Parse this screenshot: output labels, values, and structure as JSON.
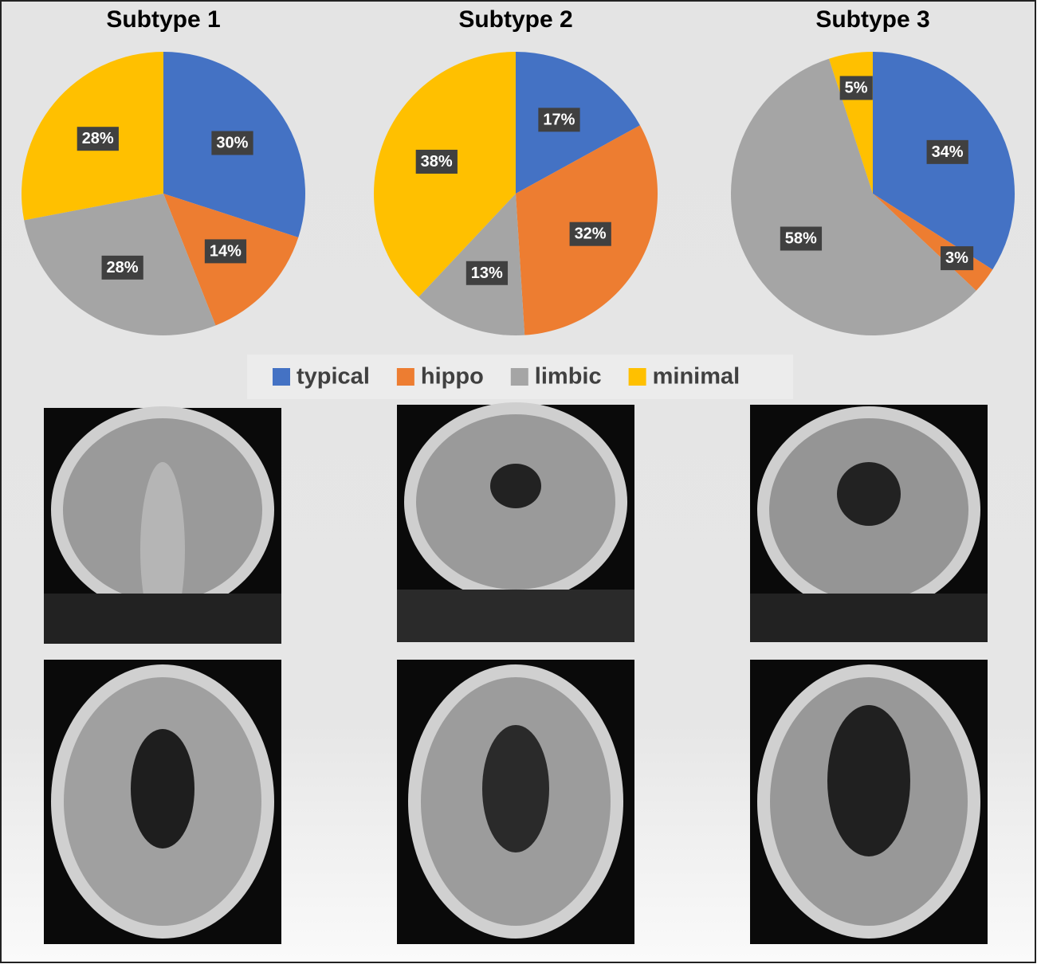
{
  "chart_data": [
    {
      "type": "pie",
      "title": "Subtype 1",
      "categories": [
        "typical",
        "hippo",
        "limbic",
        "minimal"
      ],
      "values": [
        30,
        14,
        28,
        28
      ],
      "value_labels": [
        "30%",
        "14%",
        "28%",
        "28%"
      ],
      "colors": [
        "#4472c4",
        "#ed7d31",
        "#a5a5a5",
        "#ffc000"
      ],
      "legend": "bottom"
    },
    {
      "type": "pie",
      "title": "Subtype 2",
      "categories": [
        "typical",
        "hippo",
        "limbic",
        "minimal"
      ],
      "values": [
        17,
        32,
        13,
        38
      ],
      "value_labels": [
        "17%",
        "32%",
        "13%",
        "38%"
      ],
      "colors": [
        "#4472c4",
        "#ed7d31",
        "#a5a5a5",
        "#ffc000"
      ]
    },
    {
      "type": "pie",
      "title": "Subtype 3",
      "categories": [
        "typical",
        "hippo",
        "limbic",
        "minimal"
      ],
      "values": [
        34,
        3,
        58,
        5
      ],
      "value_labels": [
        "34%",
        "3%",
        "58%",
        "5%"
      ],
      "colors": [
        "#4472c4",
        "#ed7d31",
        "#a5a5a5",
        "#ffc000"
      ]
    }
  ]
}
